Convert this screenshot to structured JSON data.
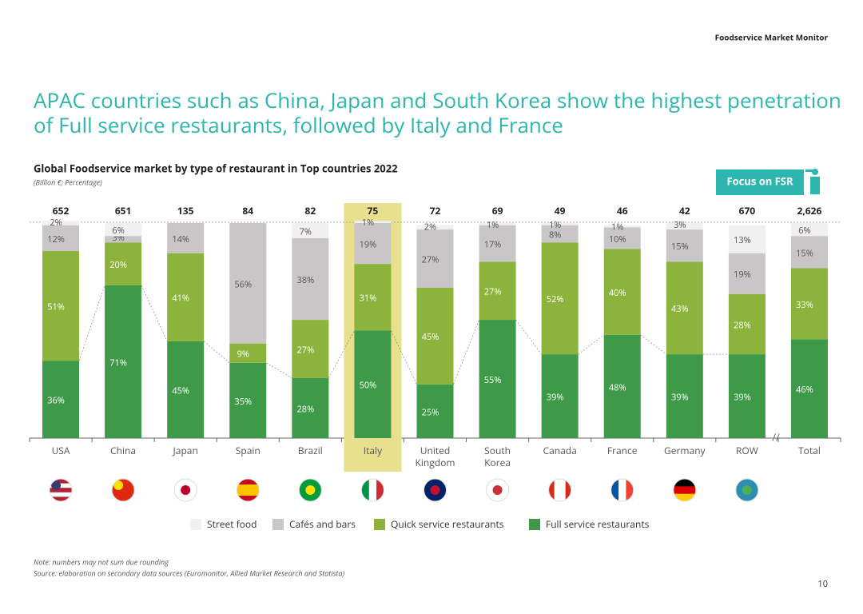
{
  "header": "Foodservice Market Monitor",
  "headline": [
    "APAC countries such as China, Japan and South Korea show the highest penetration",
    "of Full service restaurants, followed by Italy and France"
  ],
  "badge": "Focus on FSR",
  "note": "Note: numbers may not sum due rounding",
  "source": "Source: elaboration on secondary data sources (Euromonitor, Allied Market Research and Statista)",
  "page_number": "10",
  "chart_data": {
    "type": "stacked_bar_100",
    "title": "Global Foodservice market by type of restaurant in Top countries 2022",
    "subtitle": "(Billion €; Percentage)",
    "categories": [
      "USA",
      "China",
      "Japan",
      "Spain",
      "Brazil",
      "Italy",
      "United Kingdom",
      "South Korea",
      "Canada",
      "France",
      "Germany",
      "ROW",
      "Total"
    ],
    "totals": [
      "652",
      "651",
      "135",
      "84",
      "82",
      "75",
      "72",
      "69",
      "49",
      "46",
      "42",
      "670",
      "2,626"
    ],
    "highlight": "Italy",
    "highlight_color": "#e8e08c",
    "ylim": [
      0,
      100
    ],
    "series": [
      {
        "name": "Street food",
        "color": "#f0f0f0",
        "label_color": "#555555",
        "values": [
          2,
          6,
          null,
          null,
          7,
          1,
          2,
          1,
          1,
          1,
          3,
          13,
          6
        ],
        "value_labels": [
          "2%",
          "6%",
          null,
          null,
          "7%",
          "1%",
          "2%",
          "1%",
          "1%",
          "1%",
          "3%",
          "13%",
          "6%"
        ]
      },
      {
        "name": "Cafés and bars",
        "color": "#c9c6c7",
        "label_color": "#555555",
        "values": [
          12,
          3,
          14,
          56,
          38,
          19,
          27,
          17,
          8,
          10,
          15,
          19,
          15
        ],
        "value_labels": [
          "12%",
          "3%",
          "14%",
          "56%",
          "38%",
          "19%",
          "27%",
          "17%",
          "8%",
          "10%",
          "15%",
          "19%",
          "15%"
        ]
      },
      {
        "name": "Quick service restaurants",
        "color": "#8cb43c",
        "label_color": "#ffffff",
        "values": [
          51,
          20,
          41,
          9,
          27,
          31,
          45,
          27,
          52,
          40,
          43,
          28,
          33
        ],
        "value_labels": [
          "51%",
          "20%",
          "41%",
          "9%",
          "27%",
          "31%",
          "45%",
          "27%",
          "52%",
          "40%",
          "43%",
          "28%",
          "33%"
        ]
      },
      {
        "name": "Full service restaurants",
        "color": "#3e9a48",
        "label_color": "#ffffff",
        "values": [
          36,
          71,
          45,
          35,
          28,
          50,
          25,
          55,
          39,
          48,
          39,
          39,
          46
        ],
        "value_labels": [
          "36%",
          "71%",
          "45%",
          "35%",
          "28%",
          "50%",
          "25%",
          "55%",
          "39%",
          "48%",
          "39%",
          "39%",
          "46%"
        ]
      }
    ]
  }
}
